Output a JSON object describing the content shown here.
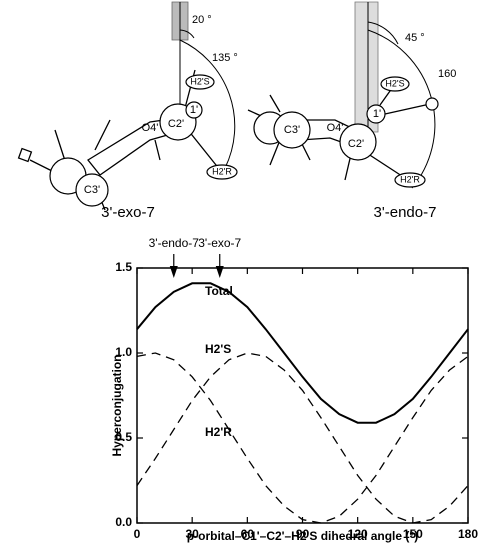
{
  "diagrams": {
    "left": {
      "caption": "3'-exo-7",
      "atoms": [
        "C3'",
        "O4'",
        "C2'",
        "1'",
        "H2'S",
        "H2'R"
      ],
      "angles": [
        "20 °",
        "135 °"
      ]
    },
    "right": {
      "caption": "3'-endo-7",
      "atoms": [
        "C3'",
        "O4'",
        "C2'",
        "1'",
        "H2'S",
        "H2'R"
      ],
      "angles": [
        "45 °",
        "160"
      ]
    }
  },
  "chart_data": {
    "type": "line",
    "xlabel": "p-orbital–C1'–C2'–H2'S dihedral angle (°)",
    "ylabel": "Hyperconjugation",
    "x": [
      0,
      10,
      20,
      30,
      40,
      50,
      60,
      70,
      80,
      90,
      100,
      110,
      120,
      130,
      140,
      150,
      160,
      170,
      180
    ],
    "series": [
      {
        "name": "Total",
        "color": "#000000",
        "dash": false,
        "values": [
          1.14,
          1.27,
          1.36,
          1.41,
          1.41,
          1.36,
          1.27,
          1.14,
          1.0,
          0.86,
          0.73,
          0.64,
          0.59,
          0.59,
          0.64,
          0.73,
          0.86,
          1.0,
          1.14
        ]
      },
      {
        "name": "H2'S",
        "color": "#000000",
        "dash": true,
        "values": [
          0.22,
          0.38,
          0.55,
          0.72,
          0.86,
          0.96,
          1.0,
          0.98,
          0.9,
          0.78,
          0.62,
          0.45,
          0.28,
          0.14,
          0.04,
          0.0,
          0.02,
          0.1,
          0.22
        ]
      },
      {
        "name": "H2'R",
        "color": "#000000",
        "dash": true,
        "values": [
          0.98,
          1.0,
          0.96,
          0.86,
          0.72,
          0.55,
          0.38,
          0.22,
          0.1,
          0.02,
          0.0,
          0.04,
          0.14,
          0.28,
          0.45,
          0.62,
          0.78,
          0.9,
          0.98
        ]
      }
    ],
    "annotations": [
      {
        "text": "3'-endo-7",
        "x": 20
      },
      {
        "text": "3'-exo-7",
        "x": 45
      }
    ],
    "xlim": [
      0,
      180
    ],
    "xticks": [
      0,
      30,
      60,
      90,
      120,
      150,
      180
    ],
    "ylim": [
      0,
      1.5
    ],
    "yticks": [
      {
        "value": 0,
        "label": "0.0"
      },
      0.5,
      {
        "value": 1,
        "label": "1.0"
      },
      1.5
    ]
  }
}
